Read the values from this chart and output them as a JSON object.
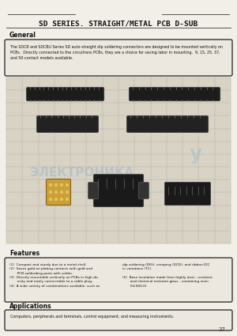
{
  "bg_color": "#f2efe8",
  "title": "SD SERIES. STRAIGHT/METAL PCB D-SUB",
  "title_fontsize": 6.8,
  "section_general": "General",
  "general_text": "The SDCB and SDCBU Series SD auto-straight dip soldering connectors are designed to be mounted vertically on\nPCBs.  Directly connected to the circuitrons PCBs, they are a choice for saving labor in mounting.  9, 15, 25, 37,\nand 50-contact models available.",
  "section_features": "Features",
  "features_left_text": "(1)  Compact and sturdy due to a metal shell.\n(2)  Saves gold on plating contacts with gold and\n       PCB-solderding parts with solder.\n(3)  Directly mountable vertically on PCBs in high de-\n       nsity and easily connectable to a cable plug.\n(4)  A wide variety of combinations available, such as",
  "features_right_top": "dip soldering (DIG), crimping (DCD), and ribbon IDC\nin variations (TC).",
  "features_right_bottom": "(5)  Base insulation made from highly dust - resistant\n       and chemical resistant glass - containing resin\n       (UL94V-0).",
  "section_applications": "Applications",
  "applications_text": "Computers, peripherals and terminals, control equipment, and measuring instruments.",
  "page_number": "37",
  "watermark1": "ЭЛЕКТРОНИКА",
  "watermark2": "у"
}
